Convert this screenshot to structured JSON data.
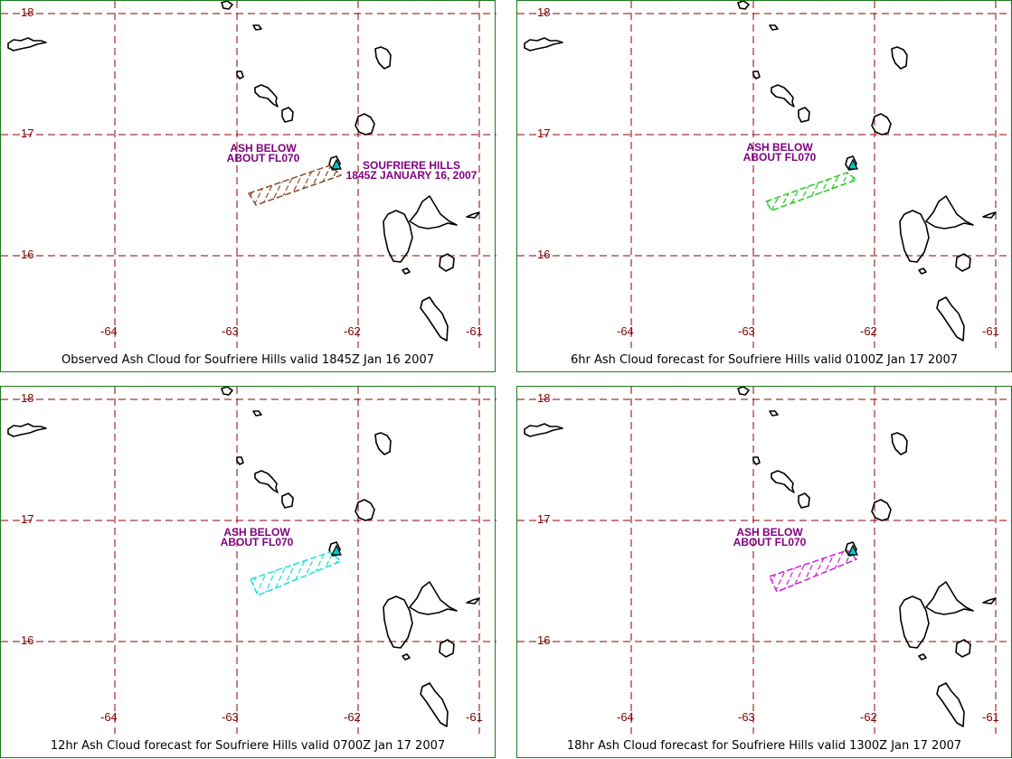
{
  "colors": {
    "frame": "#1e7a1e",
    "grid": "#8b0000",
    "coast": "#000000",
    "label": "#800000",
    "annotation": "#800080",
    "volcano": "#00c8c8"
  },
  "panels": [
    {
      "caption": "Observed Ash Cloud for Soufriere  Hills valid 1845Z Jan 16 2007",
      "ash_color": "#8b4a2b",
      "annotation": [
        "ASH BELOW",
        "ABOUT FL070"
      ],
      "volcano_note": [
        "SOUFRIERE HILLS",
        "1845Z JANUARY 16, 2007"
      ]
    },
    {
      "caption": "6hr Ash Cloud forecast for Soufriere  Hills valid 0100Z Jan 17 2007",
      "ash_color": "#22cc22",
      "annotation": [
        "ASH BELOW",
        "ABOUT FL070"
      ]
    },
    {
      "caption": "12hr Ash Cloud forecast for Soufriere  Hills valid 0700Z Jan 17 2007",
      "ash_color": "#22dddd",
      "annotation": [
        "ASH BELOW",
        "ABOUT FL070"
      ]
    },
    {
      "caption": "18hr Ash Cloud forecast for Soufriere  Hills valid 1300Z Jan 17 2007",
      "ash_color": "#cc22cc",
      "annotation": [
        "ASH BELOW",
        "ABOUT FL070"
      ]
    }
  ],
  "lat_labels": [
    "18",
    "17",
    "16"
  ],
  "lon_labels": [
    "-64",
    "-63",
    "-62",
    "-61"
  ],
  "icons": [
    "volcano-icon",
    "ash-cloud-polygon",
    "coastline-outline"
  ]
}
